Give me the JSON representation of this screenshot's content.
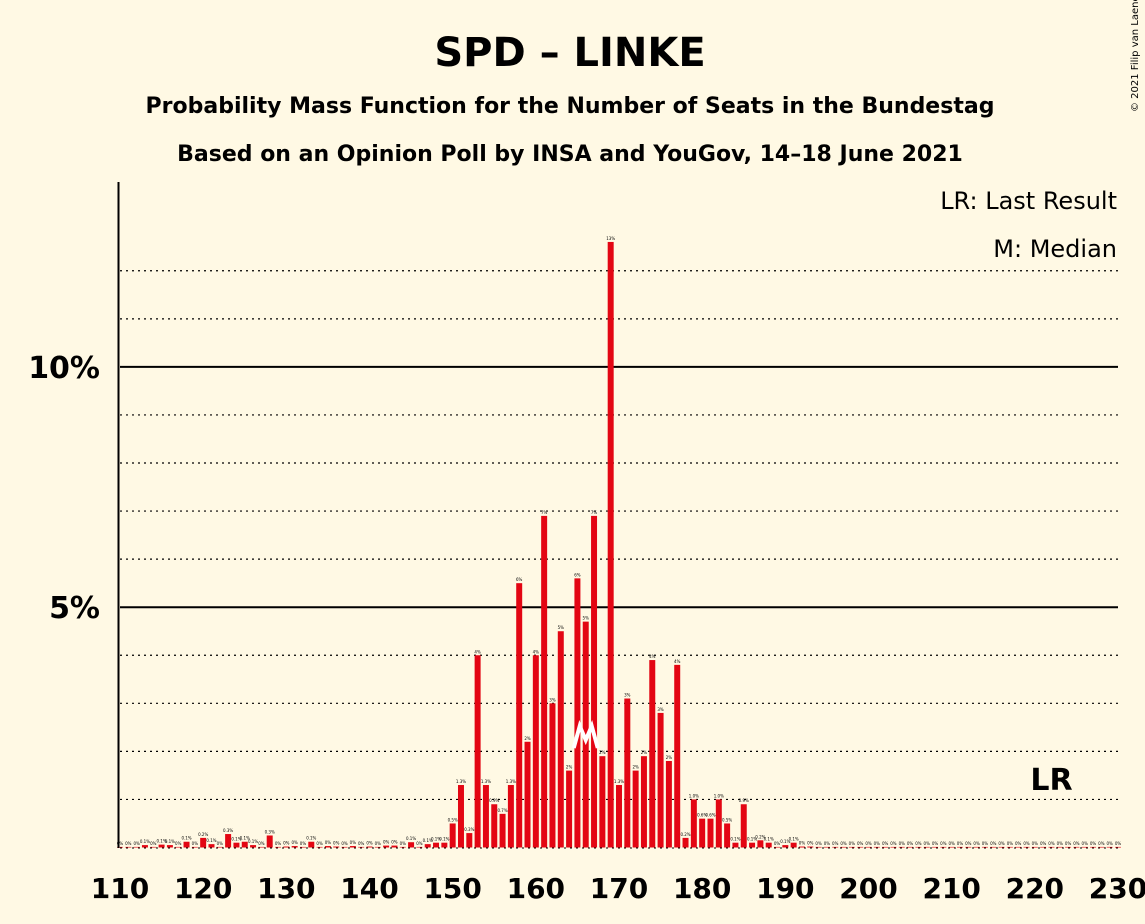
{
  "chart_data": {
    "type": "bar",
    "title": "SPD – LINKE",
    "subtitle1": "Probability Mass Function for the Number of Seats in the Bundestag",
    "subtitle2": "Based on an Opinion Poll by INSA and YouGov, 14–18 June 2021",
    "legend": [
      "LR: Last Result",
      "M: Median"
    ],
    "copyright": "© 2021 Filip van Laenen",
    "x_tick_labels": [
      "110",
      "120",
      "130",
      "140",
      "150",
      "160",
      "170",
      "180",
      "190",
      "200",
      "210",
      "220",
      "230"
    ],
    "x_ticks": [
      110,
      120,
      130,
      140,
      150,
      160,
      170,
      180,
      190,
      200,
      210,
      220,
      230
    ],
    "y_tick_labels": [
      "5%",
      "10%"
    ],
    "y_ticks": [
      5,
      10
    ],
    "xlim": [
      110,
      230
    ],
    "ylim": [
      0,
      13.8
    ],
    "grid": "dotted lines every 1%, solid at 5% and 10%",
    "bar_color": "#e30613",
    "median": 166,
    "median_label": "M",
    "last_result": 222,
    "last_result_label": "LR",
    "x": [
      110,
      111,
      112,
      113,
      114,
      115,
      116,
      117,
      118,
      119,
      120,
      121,
      122,
      123,
      124,
      125,
      126,
      127,
      128,
      129,
      130,
      131,
      132,
      133,
      134,
      135,
      136,
      137,
      138,
      139,
      140,
      141,
      142,
      143,
      144,
      145,
      146,
      147,
      148,
      149,
      150,
      151,
      152,
      153,
      154,
      155,
      156,
      157,
      158,
      159,
      160,
      161,
      162,
      163,
      164,
      165,
      166,
      167,
      168,
      169,
      170,
      171,
      172,
      173,
      174,
      175,
      176,
      177,
      178,
      179,
      180,
      181,
      182,
      183,
      184,
      185,
      186,
      187,
      188,
      189,
      190,
      191,
      192,
      193,
      194,
      195,
      196,
      197,
      198,
      199,
      200,
      201,
      202,
      203,
      204,
      205,
      206,
      207,
      208,
      209,
      210,
      211,
      212,
      213,
      214,
      215,
      216,
      217,
      218,
      219,
      220,
      221,
      222,
      223,
      224,
      225,
      226,
      227,
      228,
      229,
      230
    ],
    "values": [
      0,
      0,
      0,
      0.05,
      0,
      0.06,
      0.05,
      0,
      0.12,
      0,
      0.2,
      0.07,
      0,
      0.28,
      0.1,
      0.12,
      0.05,
      0,
      0.25,
      0,
      0.02,
      0.03,
      0,
      0.12,
      0,
      0.03,
      0.02,
      0,
      0.03,
      0,
      0.02,
      0,
      0.04,
      0.04,
      0,
      0.11,
      0,
      0.07,
      0.1,
      0.1,
      0.5,
      1.3,
      0.3,
      4.0,
      1.3,
      0.9,
      0.7,
      1.3,
      5.5,
      2.2,
      4.0,
      6.9,
      3.0,
      4.5,
      1.6,
      5.6,
      4.7,
      6.9,
      1.9,
      12.6,
      1.3,
      3.1,
      1.6,
      1.9,
      3.9,
      2.8,
      1.8,
      3.8,
      0.2,
      1.0,
      0.6,
      0.6,
      1.0,
      0.5,
      0.1,
      0.9,
      0.1,
      0.15,
      0.1,
      0,
      0.05,
      0.1,
      0.02,
      0.02,
      0,
      0,
      0,
      0,
      0,
      0,
      0,
      0,
      0,
      0,
      0,
      0,
      0,
      0,
      0,
      0,
      0,
      0,
      0,
      0,
      0,
      0,
      0,
      0,
      0,
      0,
      0,
      0,
      0,
      0,
      0,
      0,
      0,
      0,
      0,
      0,
      0
    ],
    "value_labels": [
      "0%",
      "0%",
      "0%",
      "0.1%",
      "0%",
      "0.1%",
      "0.1%",
      "0%",
      "0.1%",
      "0%",
      "0.2%",
      "0.1%",
      "0%",
      "0.3%",
      "0.1%",
      "0.1%",
      "0.1%",
      "0%",
      "0.3%",
      "0%",
      "0%",
      "0%",
      "0%",
      "0.1%",
      "0%",
      "0%",
      "0%",
      "0%",
      "0%",
      "0%",
      "0%",
      "0%",
      "0%",
      "0%",
      "0%",
      "0.1%",
      "0%",
      "0.1%",
      "0.1%",
      "0.1%",
      "0.5%",
      "1.3%",
      "0.3%",
      "4%",
      "1.3%",
      "0.9%",
      "0.7%",
      "1.3%",
      "6%",
      "2%",
      "4%",
      "7%",
      "3%",
      "5%",
      "2%",
      "6%",
      "5%",
      "7%",
      "2%",
      "13%",
      "1.3%",
      "3%",
      "2%",
      "2%",
      "4%",
      "3%",
      "2%",
      "4%",
      "0.2%",
      "1.0%",
      "0.6%",
      "0.6%",
      "1.0%",
      "0.5%",
      "0.1%",
      "0.9%",
      "0.1%",
      "0.2%",
      "0.1%",
      "0%",
      "0.1%",
      "0.1%",
      "0%",
      "0%",
      "0%",
      "0%",
      "0%",
      "0%",
      "0%",
      "0%",
      "0%",
      "0%",
      "0%",
      "0%",
      "0%",
      "0%",
      "0%",
      "0%",
      "0%",
      "0%",
      "0%",
      "0%",
      "0%",
      "0%",
      "0%",
      "0%",
      "0%",
      "0%",
      "0%",
      "0%",
      "0%",
      "0%",
      "0%",
      "0%",
      "0%",
      "0%",
      "0%",
      "0%",
      "0%",
      "0%",
      "0%"
    ]
  }
}
